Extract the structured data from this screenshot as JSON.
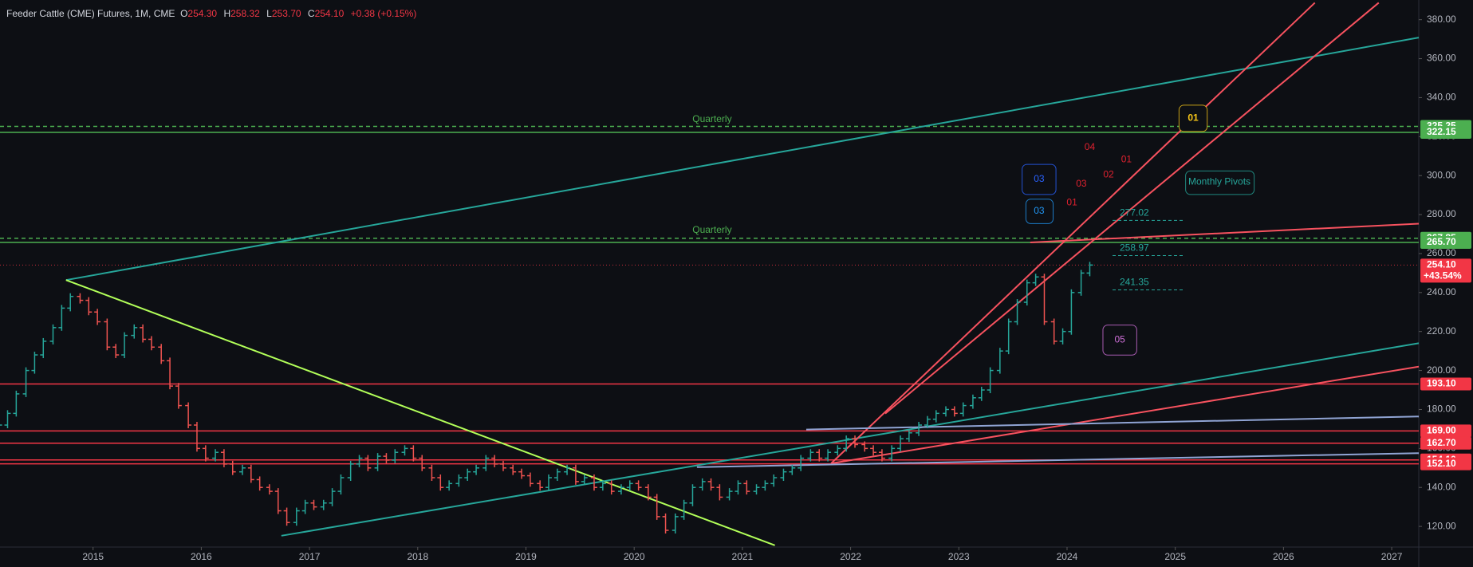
{
  "header": {
    "symbol": "Feeder Cattle (CME) Futures, 1M, CME",
    "o_label": "O",
    "o": "254.30",
    "h_label": "H",
    "h": "258.32",
    "l_label": "L",
    "l": "253.70",
    "c_label": "C",
    "c": "254.10",
    "change": "+0.38 (+0.15%)"
  },
  "chart_data": {
    "type": "ohlc",
    "x": [
      2014.13,
      2014.21,
      2014.29,
      2014.38,
      2014.46,
      2014.54,
      2014.63,
      2014.71,
      2014.79,
      2014.88,
      2014.96,
      2015.04,
      2015.13,
      2015.21,
      2015.29,
      2015.38,
      2015.46,
      2015.54,
      2015.63,
      2015.71,
      2015.79,
      2015.88,
      2015.96,
      2016.04,
      2016.13,
      2016.21,
      2016.29,
      2016.38,
      2016.46,
      2016.54,
      2016.63,
      2016.71,
      2016.79,
      2016.88,
      2016.96,
      2017.04,
      2017.13,
      2017.21,
      2017.29,
      2017.38,
      2017.46,
      2017.54,
      2017.63,
      2017.71,
      2017.79,
      2017.88,
      2017.96,
      2018.04,
      2018.13,
      2018.21,
      2018.29,
      2018.38,
      2018.46,
      2018.54,
      2018.63,
      2018.71,
      2018.79,
      2018.88,
      2018.96,
      2019.04,
      2019.13,
      2019.21,
      2019.29,
      2019.38,
      2019.46,
      2019.54,
      2019.63,
      2019.71,
      2019.79,
      2019.88,
      2019.96,
      2020.04,
      2020.13,
      2020.21,
      2020.29,
      2020.38,
      2020.46,
      2020.54,
      2020.63,
      2020.71,
      2020.79,
      2020.88,
      2020.96,
      2021.04,
      2021.13,
      2021.21,
      2021.29,
      2021.38,
      2021.46,
      2021.54,
      2021.63,
      2021.71,
      2021.79,
      2021.88,
      2021.96,
      2022.04,
      2022.13,
      2022.21,
      2022.29,
      2022.38,
      2022.46,
      2022.54,
      2022.63,
      2022.71,
      2022.79,
      2022.88,
      2022.96,
      2023.04,
      2023.13,
      2023.21,
      2023.29,
      2023.38,
      2023.46,
      2023.54,
      2023.63,
      2023.71,
      2023.79,
      2023.88,
      2023.96,
      2024.04,
      2024.13,
      2024.21
    ],
    "values": [
      172,
      178,
      188,
      200,
      208,
      215,
      222,
      232,
      238,
      236,
      230,
      225,
      212,
      208,
      218,
      222,
      216,
      212,
      205,
      192,
      182,
      172,
      160,
      155,
      158,
      152,
      148,
      150,
      144,
      140,
      138,
      128,
      122,
      128,
      132,
      130,
      132,
      138,
      145,
      152,
      155,
      150,
      156,
      154,
      158,
      160,
      155,
      150,
      145,
      140,
      142,
      145,
      148,
      150,
      155,
      152,
      150,
      148,
      146,
      142,
      140,
      145,
      148,
      150,
      143,
      145,
      140,
      142,
      138,
      140,
      142,
      140,
      135,
      125,
      118,
      125,
      132,
      140,
      143,
      140,
      135,
      138,
      142,
      138,
      140,
      142,
      145,
      148,
      150,
      155,
      158,
      155,
      158,
      160,
      165,
      162,
      160,
      158,
      155,
      160,
      165,
      168,
      172,
      175,
      178,
      180,
      178,
      182,
      186,
      190,
      200,
      210,
      225,
      235,
      245,
      248,
      225,
      215,
      220,
      240,
      250,
      254.1
    ],
    "up_color": "#26a69a",
    "down_color": "#ef5350",
    "xlim": [
      2014.14,
      2027.25
    ],
    "ylim": [
      109.4,
      390.1
    ],
    "xticks": [
      2015,
      2016,
      2017,
      2018,
      2019,
      2020,
      2021,
      2022,
      2023,
      2024,
      2025,
      2026,
      2027
    ],
    "yticks": [
      {
        "value": 120,
        "label": "120.00"
      },
      {
        "value": 140,
        "label": "140.00"
      },
      {
        "value": 160,
        "label": "160.00"
      },
      {
        "value": 180,
        "label": "180.00"
      },
      {
        "value": 200,
        "label": "200.00"
      },
      {
        "value": 220,
        "label": "220.00"
      },
      {
        "value": 240,
        "label": "240.00"
      },
      {
        "value": 260,
        "label": "260.00"
      },
      {
        "value": 280,
        "label": "280.00"
      },
      {
        "value": 300,
        "label": "300.00"
      },
      {
        "value": 320,
        "label": "320.00"
      },
      {
        "value": 340,
        "label": "340.00"
      },
      {
        "value": 360,
        "label": "360.00"
      },
      {
        "value": 380,
        "label": "380.00"
      }
    ],
    "levels": [
      {
        "value": 325.25,
        "label": "325.25",
        "color": "#4caf50",
        "style": "dashed"
      },
      {
        "value": 322.15,
        "label": "322.15",
        "color": "#4caf50",
        "style": "solid"
      },
      {
        "value": 267.85,
        "label": "267.85",
        "color": "#4caf50",
        "style": "dashed"
      },
      {
        "value": 265.7,
        "label": "265.70",
        "color": "#4caf50",
        "style": "solid"
      },
      {
        "value": 193.1,
        "label": "193.10",
        "color": "#f23645",
        "style": "solid"
      },
      {
        "value": 169,
        "label": "169.00",
        "color": "#f23645",
        "style": "solid"
      },
      {
        "value": 162.7,
        "label": "162.70",
        "color": "#f23645",
        "style": "solid"
      },
      {
        "value": 154.1,
        "label": "154.10",
        "color": "#f23645",
        "style": "solid"
      },
      {
        "value": 152.1,
        "label": "152.10",
        "color": "#f23645",
        "style": "solid"
      }
    ],
    "last": {
      "value": 254.1,
      "label": "254.10",
      "change": "+43.54%",
      "color": "#f23645"
    },
    "pivots": [
      {
        "value": 277.02,
        "label": "277.02"
      },
      {
        "value": 258.97,
        "label": "258.97"
      },
      {
        "value": 241.35,
        "label": "241.35"
      }
    ],
    "trendlines": [
      {
        "color": "#26a69a",
        "x": [
          2014.75,
          2027.25
        ],
        "y": [
          246.4,
          370.8
        ]
      },
      {
        "color": "#b2ff59",
        "x": [
          2014.75,
          2021.3
        ],
        "y": [
          246.4,
          110.3
        ]
      },
      {
        "color": "#26a69a",
        "x": [
          2016.74,
          2027.25
        ],
        "y": [
          115.2,
          214
        ]
      },
      {
        "color": "#f7525f",
        "x": [
          2021.82,
          2026.29
        ],
        "y": [
          152.3,
          388.7
        ]
      },
      {
        "color": "#f7525f",
        "x": [
          2022.32,
          2026.88
        ],
        "y": [
          177.9,
          388.7
        ]
      },
      {
        "color": "#f7525f",
        "x": [
          2023.66,
          2027.25
        ],
        "y": [
          265.7,
          275.3
        ]
      },
      {
        "color": "#f7525f",
        "x": [
          2021.82,
          2027.25
        ],
        "y": [
          152.3,
          202
        ]
      },
      {
        "color": "#90a4d4",
        "x": [
          2021.59,
          2027.25
        ],
        "y": [
          169.7,
          176.4
        ]
      },
      {
        "color": "#90a4d4",
        "x": [
          2020.58,
          2027.25
        ],
        "y": [
          150.4,
          157.6
        ]
      }
    ],
    "annotations": [
      {
        "text": "Quarterly",
        "color": "#4caf50",
        "style": "text"
      },
      {
        "text": "Quarterly",
        "color": "#4caf50",
        "style": "text"
      },
      {
        "text": "01",
        "color": "#f5c518",
        "style": "box"
      },
      {
        "text": "03",
        "color": "#2962ff",
        "style": "box"
      },
      {
        "text": "03",
        "color": "#2196f3",
        "style": "box"
      },
      {
        "text": "Monthly Pivots",
        "color": "#26a69a",
        "style": "box"
      },
      {
        "text": "05",
        "color": "#ce6fd8",
        "style": "box"
      },
      {
        "text": "04",
        "color": "#e0212f",
        "style": "text"
      },
      {
        "text": "03",
        "color": "#e0212f",
        "style": "text"
      },
      {
        "text": "02",
        "color": "#e0212f",
        "style": "text"
      },
      {
        "text": "01",
        "color": "#e0212f",
        "style": "text"
      },
      {
        "text": "01",
        "color": "#e0212f",
        "style": "text"
      }
    ]
  }
}
